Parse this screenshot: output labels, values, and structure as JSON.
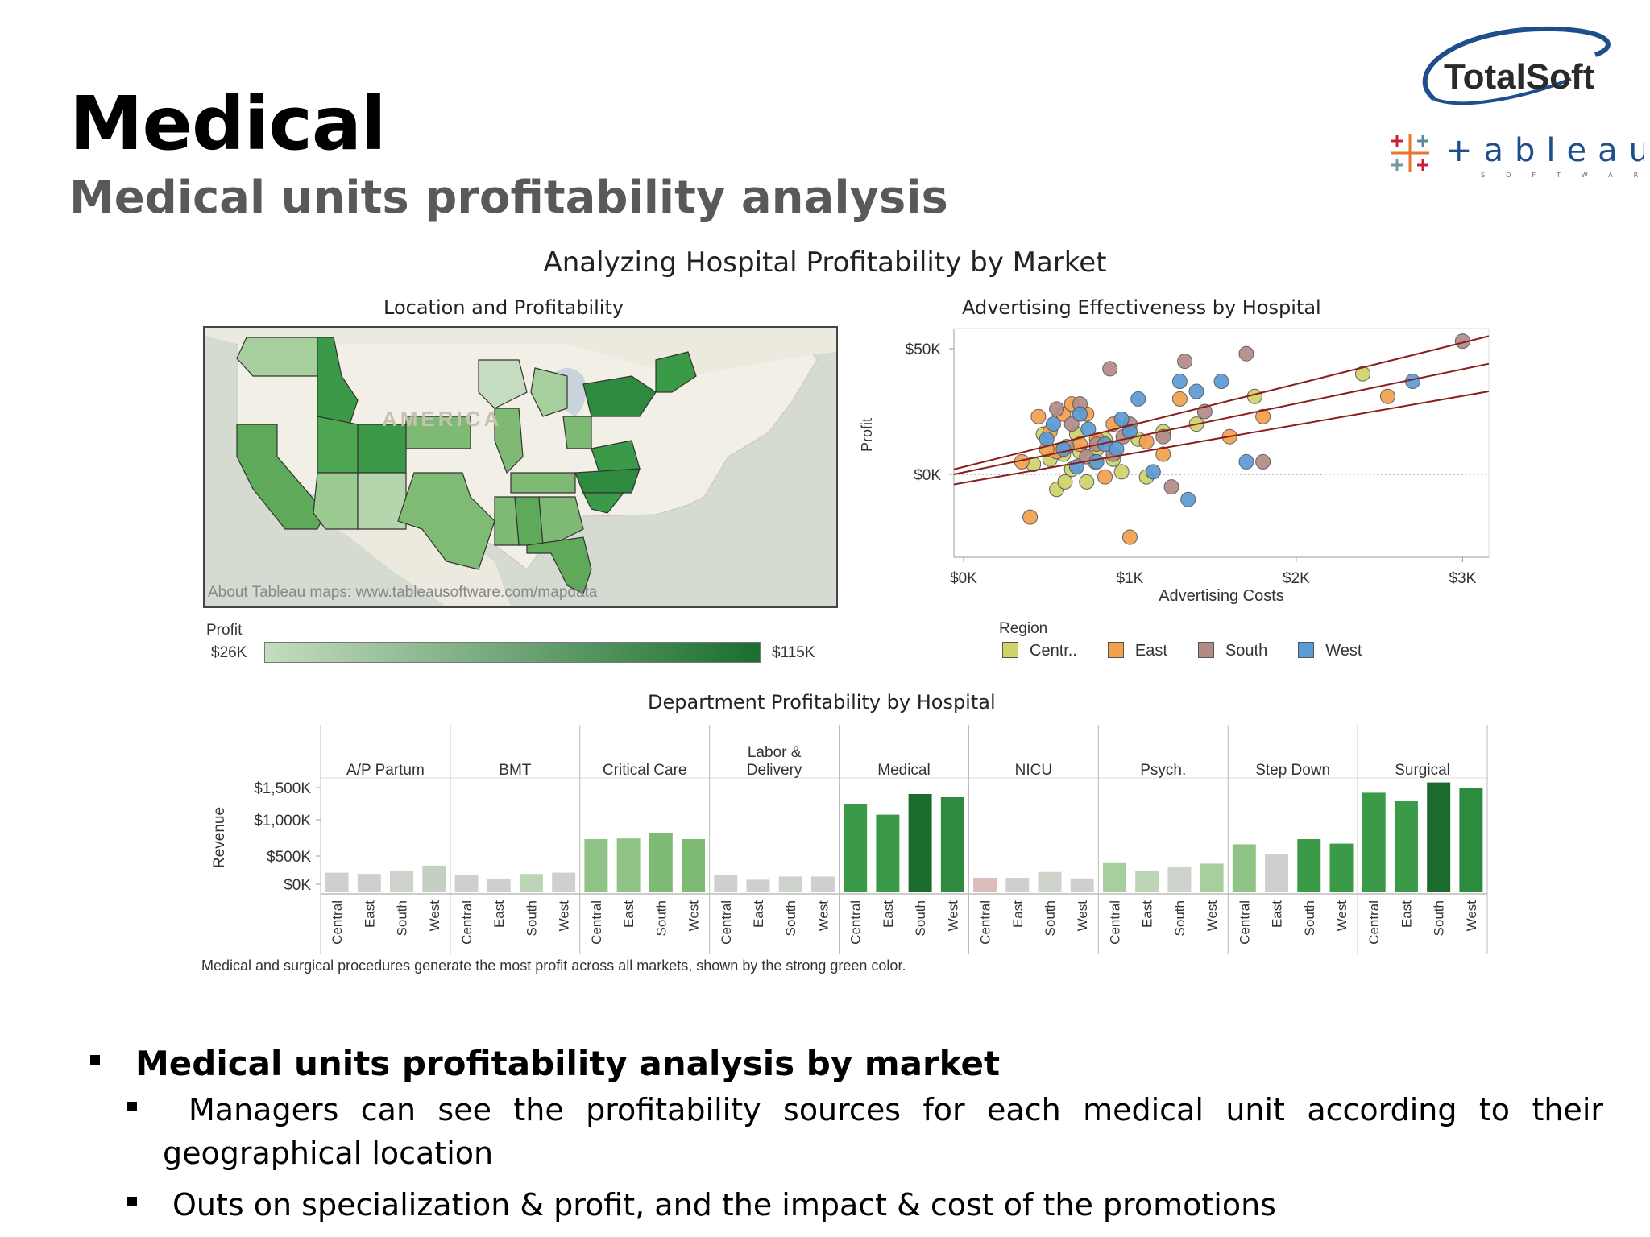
{
  "slide": {
    "title": "Medical",
    "subtitle": "Medical units profitability analysis"
  },
  "logos": {
    "totalsoft": "TotalSoft",
    "tableau": "+ableau",
    "tableau_sub": "SOFTWARE"
  },
  "dashboard": {
    "title": "Analyzing Hospital Profitability by Market",
    "map_title": "Location and Profitability",
    "scatter_title": "Advertising Effectiveness by Hospital",
    "dept_title": "Department Profitability by Hospital",
    "map_attribution": "About Tableau maps: www.tableausoftware.com/mapdata",
    "map_watermark": "AMERICA",
    "profit_legend": {
      "label": "Profit",
      "min": "$26K",
      "max": "$115K",
      "color_low": "#c5dcc0",
      "color_high": "#1a6e2e"
    },
    "region_legend": {
      "title": "Region",
      "items": [
        {
          "label": "Centr..",
          "color": "#cfd36a"
        },
        {
          "label": "East",
          "color": "#f3a04e"
        },
        {
          "label": "South",
          "color": "#b38a86"
        },
        {
          "label": "West",
          "color": "#5b9bd5"
        }
      ]
    },
    "caption": "Medical and surgical procedures generate the most profit across all markets, shown by the strong green color."
  },
  "chart_data": [
    {
      "type": "scatter",
      "title": "Advertising Effectiveness by Hospital",
      "xlabel": "Advertising Costs",
      "ylabel": "Profit",
      "x_ticks": [
        "$0K",
        "$1K",
        "$2K",
        "$3K"
      ],
      "y_ticks": [
        "$50K",
        "$0K"
      ],
      "xlim": [
        0,
        3100
      ],
      "ylim": [
        -33000,
        58000
      ],
      "trend_lines": [
        {
          "x": [
            0,
            3100
          ],
          "y": [
            2000,
            55000
          ]
        },
        {
          "x": [
            0,
            3100
          ],
          "y": [
            0,
            44000
          ]
        },
        {
          "x": [
            0,
            3100
          ],
          "y": [
            -4000,
            33000
          ]
        }
      ],
      "series": [
        {
          "name": "Centr..",
          "color": "#cfd36a",
          "points": [
            [
              600,
              8000
            ],
            [
              420,
              4000
            ],
            [
              520,
              6000
            ],
            [
              650,
              2000
            ],
            [
              700,
              9000
            ],
            [
              800,
              10000
            ],
            [
              900,
              6000
            ],
            [
              1050,
              14000
            ],
            [
              1200,
              17000
            ],
            [
              1400,
              20000
            ],
            [
              1750,
              31000
            ],
            [
              2400,
              40000
            ],
            [
              560,
              -6000
            ],
            [
              740,
              -3000
            ],
            [
              850,
              14000
            ],
            [
              480,
              16000
            ],
            [
              950,
              1000
            ],
            [
              1100,
              -1000
            ],
            [
              680,
              16000
            ],
            [
              610,
              -3000
            ],
            [
              790,
              5000
            ]
          ]
        },
        {
          "name": "East",
          "color": "#f3a04e",
          "points": [
            [
              350,
              5000
            ],
            [
              450,
              23000
            ],
            [
              520,
              17000
            ],
            [
              600,
              24000
            ],
            [
              700,
              12000
            ],
            [
              800,
              14000
            ],
            [
              900,
              20000
            ],
            [
              1100,
              13000
            ],
            [
              1300,
              30000
            ],
            [
              1600,
              15000
            ],
            [
              1800,
              23000
            ],
            [
              2550,
              31000
            ],
            [
              400,
              -17000
            ],
            [
              1000,
              -25000
            ],
            [
              850,
              -1000
            ],
            [
              1200,
              8000
            ],
            [
              560,
              9000
            ],
            [
              650,
              28000
            ],
            [
              740,
              24000
            ],
            [
              500,
              10000
            ]
          ]
        },
        {
          "name": "South",
          "color": "#b38a86",
          "points": [
            [
              560,
              26000
            ],
            [
              650,
              20000
            ],
            [
              700,
              28000
            ],
            [
              800,
              12000
            ],
            [
              900,
              8000
            ],
            [
              1000,
              20000
            ],
            [
              1200,
              15000
            ],
            [
              1450,
              25000
            ],
            [
              1700,
              48000
            ],
            [
              3000,
              53000
            ],
            [
              1250,
              -5000
            ],
            [
              1800,
              5000
            ],
            [
              880,
              42000
            ],
            [
              1330,
              45000
            ],
            [
              960,
              15000
            ],
            [
              620,
              11000
            ],
            [
              740,
              7000
            ]
          ]
        },
        {
          "name": "West",
          "color": "#5b9bd5",
          "points": [
            [
              500,
              14000
            ],
            [
              600,
              10000
            ],
            [
              700,
              24000
            ],
            [
              750,
              18000
            ],
            [
              800,
              5000
            ],
            [
              850,
              12000
            ],
            [
              950,
              22000
            ],
            [
              1050,
              30000
            ],
            [
              1300,
              37000
            ],
            [
              1400,
              33000
            ],
            [
              1550,
              37000
            ],
            [
              1700,
              5000
            ],
            [
              2700,
              37000
            ],
            [
              1350,
              -10000
            ],
            [
              1140,
              1000
            ],
            [
              1000,
              17000
            ],
            [
              680,
              3000
            ],
            [
              920,
              10000
            ],
            [
              540,
              20000
            ]
          ]
        }
      ]
    },
    {
      "type": "bar",
      "title": "Department Profitability by Hospital",
      "ylabel": "Revenue",
      "y_ticks": [
        "$1,500K",
        "$1,000K",
        "$500K",
        "$0K"
      ],
      "ylim": [
        0,
        1600
      ],
      "regions": [
        "Central",
        "East",
        "South",
        "West"
      ],
      "series": [
        {
          "name": "A/P Partum",
          "values": [
            180,
            160,
            210,
            290
          ],
          "colors": [
            "#cfcfcf",
            "#cfcfcf",
            "#cdd3cb",
            "#c4d0c1"
          ]
        },
        {
          "name": "BMT",
          "values": [
            150,
            80,
            160,
            180
          ],
          "colors": [
            "#cfcfcf",
            "#cfcfcf",
            "#bcd5b6",
            "#cfcfcf"
          ]
        },
        {
          "name": "Critical Care",
          "values": [
            700,
            710,
            800,
            700
          ],
          "colors": [
            "#8fc486",
            "#8fc486",
            "#7fba75",
            "#7fba75"
          ]
        },
        {
          "name": "Labor & Delivery",
          "values": [
            150,
            70,
            120,
            120
          ],
          "colors": [
            "#cfcfcf",
            "#cfcfcf",
            "#cdd3cb",
            "#cfcfcf"
          ]
        },
        {
          "name": "Medical",
          "values": [
            1250,
            1080,
            1400,
            1350
          ],
          "colors": [
            "#3a9a48",
            "#3a9a48",
            "#1b6b2f",
            "#2e8a3e"
          ]
        },
        {
          "name": "NICU",
          "values": [
            100,
            100,
            190,
            90
          ],
          "colors": [
            "#dbbdbd",
            "#cfcfcf",
            "#cdd3cb",
            "#cfcfcf"
          ]
        },
        {
          "name": "Psych.",
          "values": [
            340,
            200,
            270,
            320
          ],
          "colors": [
            "#a6cf9d",
            "#bcd5b6",
            "#cdd3cb",
            "#a6cf9d"
          ]
        },
        {
          "name": "Step Down",
          "values": [
            620,
            470,
            700,
            630
          ],
          "colors": [
            "#8fc486",
            "#cfcfcf",
            "#3a9a48",
            "#3a9a48"
          ]
        },
        {
          "name": "Surgical",
          "values": [
            1420,
            1300,
            1580,
            1500
          ],
          "colors": [
            "#3a9a48",
            "#3a9a48",
            "#1b6b2f",
            "#2e8a3e"
          ]
        }
      ],
      "dept_labels": [
        "A/P Partum",
        "BMT",
        "Critical Care",
        "Labor &|Delivery",
        "Medical",
        "NICU",
        "Psych.",
        "Step Down",
        "Surgical"
      ]
    }
  ],
  "bullets": {
    "main": "Medical units profitability analysis by market",
    "sub1_line1": "Managers can see the profitability sources for each medical unit according to their",
    "sub1_line2": "geographical location",
    "sub2": "Outs on specialization & profit, and the impact & cost of the promotions"
  }
}
